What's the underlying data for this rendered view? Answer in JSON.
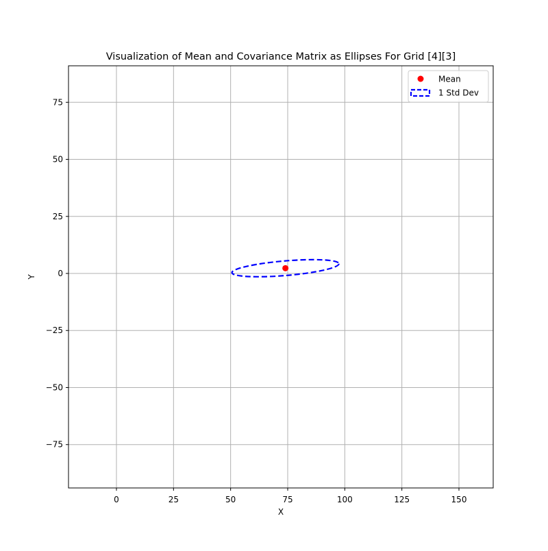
{
  "chart_data": {
    "type": "scatter",
    "title": "Visualization of Mean and Covariance Matrix as Ellipses For Grid [4][3]",
    "xlabel": "X",
    "ylabel": "Y",
    "xlim": [
      -21,
      165
    ],
    "ylim": [
      -94,
      91
    ],
    "xticks": [
      0,
      25,
      50,
      75,
      100,
      125,
      150
    ],
    "yticks": [
      -75,
      -50,
      -25,
      0,
      25,
      50,
      75
    ],
    "xtick_labels": [
      "0",
      "25",
      "50",
      "75",
      "100",
      "125",
      "150"
    ],
    "ytick_labels": [
      "−75",
      "−50",
      "−25",
      "0",
      "25",
      "50",
      "75"
    ],
    "grid": true,
    "legend_position": "top-right",
    "series": [
      {
        "name": "Mean",
        "kind": "point",
        "color": "#ff0000",
        "x": 74,
        "y": 2.3
      },
      {
        "name": "1 Std Dev",
        "kind": "ellipse",
        "color": "#0000ff",
        "linestyle": "dashed",
        "center": [
          74,
          2.3
        ],
        "semi_axes": [
          23.5,
          3.2
        ],
        "angle_deg": 4.8
      }
    ]
  }
}
